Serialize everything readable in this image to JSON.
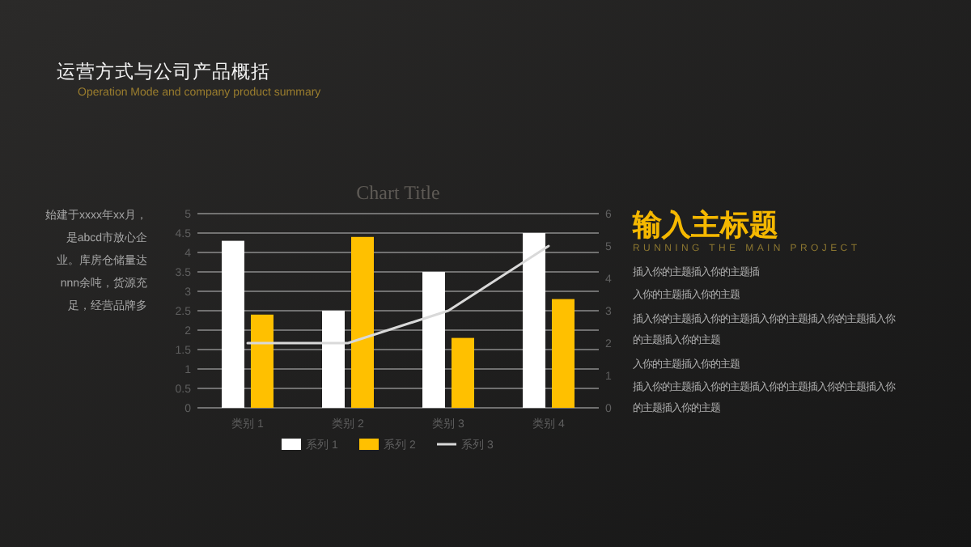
{
  "chart_data": {
    "type": "bar",
    "title": "Chart Title",
    "categories": [
      "类别 1",
      "类别 2",
      "类别 3",
      "类别 4"
    ],
    "series": [
      {
        "name": "系列 1",
        "color": "#ffffff",
        "values": [
          4.3,
          2.5,
          3.5,
          4.5
        ]
      },
      {
        "name": "系列 2",
        "color": "#ffc000",
        "values": [
          2.4,
          4.4,
          1.8,
          2.8
        ]
      },
      {
        "name": "系列 3",
        "color": "#d9d9d9",
        "type": "line",
        "axis": "y2",
        "values": [
          2,
          2,
          3,
          5
        ]
      }
    ],
    "ylim": [
      0,
      5
    ],
    "yticks": [
      0,
      0.5,
      1,
      1.5,
      2,
      2.5,
      3,
      3.5,
      4,
      4.5,
      5
    ],
    "y2lim": [
      0,
      6
    ],
    "y2ticks": [
      0,
      1,
      2,
      3,
      4,
      5,
      6
    ],
    "grid": "y",
    "legend": "bottom",
    "annotations": [
      "运营方式与公司产品概括",
      "Operation Mode and company product summary",
      "始建于xxxx年xx月，",
      "是abcd市放心企",
      "业。库房仓储量达",
      "nnn余吨，货源充",
      "足，经营品牌多",
      "输入主标题",
      "RUNNING THE MAIN PROJECT",
      "插入你的主题插入你的主题插",
      "入你的主题插入你的主题",
      "插入你的主题插入你的主题插入你的主题插入你的主题插入你",
      "的主题插入你的主题",
      "入你的主题插入你的主题",
      "插入你的主题插入你的主题插入你的主题插入你的主题插入你",
      "的主题插入你的主题"
    ]
  }
}
